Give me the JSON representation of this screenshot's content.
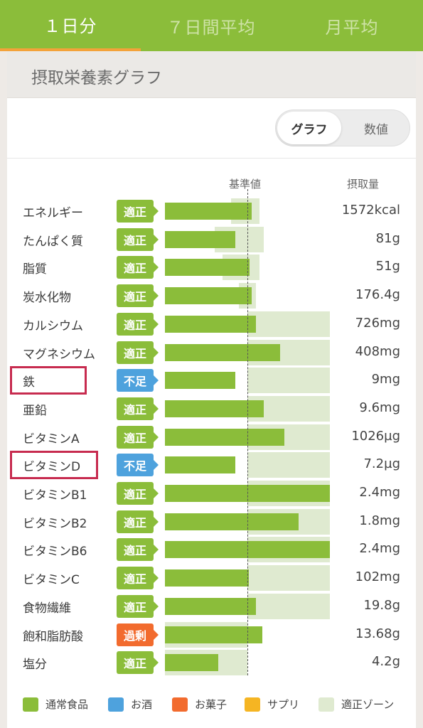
{
  "tabs": [
    {
      "label": "１日分",
      "active": true
    },
    {
      "label": "７日間平均",
      "active": false
    },
    {
      "label": "月平均",
      "active": false
    }
  ],
  "section_title": "摂取栄養素グラフ",
  "toggle": {
    "graph_label": "グラフ",
    "numeric_label": "数値",
    "selected": "グラフ"
  },
  "column_headers": {
    "reference": "基準値",
    "intake": "摂取量"
  },
  "colors": {
    "brand": "#8bbd3a",
    "tab_indicator": "#f3a23a",
    "normal_food": "#8bbd3a",
    "alcohol": "#4ea2dd",
    "snacks": "#f26b2e",
    "supplement": "#f5b523",
    "zone": "#dfead0",
    "highlight": "#c72b4f"
  },
  "nutrients": [
    {
      "name": "エネルギー",
      "status": "適正",
      "status_type": "ok",
      "value": "1572kcal",
      "intake_ratio": 1.05,
      "zone_range": [
        0.8,
        1.15
      ],
      "highlighted": false
    },
    {
      "name": "たんぱく質",
      "status": "適正",
      "status_type": "ok",
      "value": "81g",
      "intake_ratio": 0.85,
      "zone_range": [
        0.6,
        1.2
      ],
      "highlighted": false
    },
    {
      "name": "脂質",
      "status": "適正",
      "status_type": "ok",
      "value": "51g",
      "intake_ratio": 1.03,
      "zone_range": [
        0.7,
        1.15
      ],
      "highlighted": false
    },
    {
      "name": "炭水化物",
      "status": "適正",
      "status_type": "ok",
      "value": "176.4g",
      "intake_ratio": 1.05,
      "zone_range": [
        0.9,
        1.1
      ],
      "highlighted": false
    },
    {
      "name": "カルシウム",
      "status": "適正",
      "status_type": "ok",
      "value": "726mg",
      "intake_ratio": 1.1,
      "zone_range": [
        1.0,
        2.0
      ],
      "highlighted": false
    },
    {
      "name": "マグネシウム",
      "status": "適正",
      "status_type": "ok",
      "value": "408mg",
      "intake_ratio": 1.4,
      "zone_range": [
        1.0,
        2.0
      ],
      "highlighted": false
    },
    {
      "name": "鉄",
      "status": "不足",
      "status_type": "low",
      "value": "9mg",
      "intake_ratio": 0.85,
      "zone_range": [
        1.0,
        2.0
      ],
      "highlighted": true
    },
    {
      "name": "亜鉛",
      "status": "適正",
      "status_type": "ok",
      "value": "9.6mg",
      "intake_ratio": 1.2,
      "zone_range": [
        1.0,
        2.0
      ],
      "highlighted": false
    },
    {
      "name": "ビタミンA",
      "status": "適正",
      "status_type": "ok",
      "value": "1026µg",
      "intake_ratio": 1.45,
      "zone_range": [
        1.0,
        2.0
      ],
      "highlighted": false
    },
    {
      "name": "ビタミンD",
      "status": "不足",
      "status_type": "low",
      "value": "7.2µg",
      "intake_ratio": 0.85,
      "zone_range": [
        1.0,
        2.0
      ],
      "highlighted": true
    },
    {
      "name": "ビタミンB1",
      "status": "適正",
      "status_type": "ok",
      "value": "2.4mg",
      "intake_ratio": 2.0,
      "zone_range": [
        1.0,
        2.0
      ],
      "highlighted": false
    },
    {
      "name": "ビタミンB2",
      "status": "適正",
      "status_type": "ok",
      "value": "1.8mg",
      "intake_ratio": 1.62,
      "zone_range": [
        1.0,
        2.0
      ],
      "highlighted": false
    },
    {
      "name": "ビタミンB6",
      "status": "適正",
      "status_type": "ok",
      "value": "2.4mg",
      "intake_ratio": 2.0,
      "zone_range": [
        1.0,
        2.0
      ],
      "highlighted": false
    },
    {
      "name": "ビタミンC",
      "status": "適正",
      "status_type": "ok",
      "value": "102mg",
      "intake_ratio": 1.02,
      "zone_range": [
        1.0,
        2.0
      ],
      "highlighted": false
    },
    {
      "name": "食物繊維",
      "status": "適正",
      "status_type": "ok",
      "value": "19.8g",
      "intake_ratio": 1.1,
      "zone_range": [
        1.0,
        2.0
      ],
      "highlighted": false
    },
    {
      "name": "飽和脂肪酸",
      "status": "過剰",
      "status_type": "high",
      "value": "13.68g",
      "intake_ratio": 1.18,
      "zone_range": [
        0.0,
        1.0
      ],
      "highlighted": false
    },
    {
      "name": "塩分",
      "status": "適正",
      "status_type": "ok",
      "value": "4.2g",
      "intake_ratio": 0.65,
      "zone_range": [
        0.0,
        1.0
      ],
      "highlighted": false
    }
  ],
  "legend": [
    {
      "label": "通常食品",
      "color_key": "normal_food"
    },
    {
      "label": "お酒",
      "color_key": "alcohol"
    },
    {
      "label": "お菓子",
      "color_key": "snacks"
    },
    {
      "label": "サプリ",
      "color_key": "supplement"
    },
    {
      "label": "適正ゾーン",
      "color_key": "zone"
    }
  ]
}
